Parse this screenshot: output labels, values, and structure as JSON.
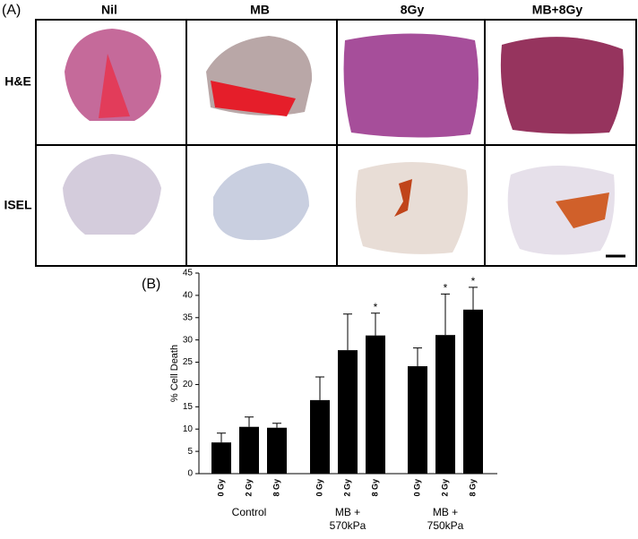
{
  "panel_a": {
    "label": "(A)",
    "columns": [
      "Nil",
      "MB",
      "8Gy",
      "MB+8Gy"
    ],
    "rows": [
      "H&E",
      "ISEL"
    ]
  },
  "chart_data": {
    "type": "bar",
    "panel_label": "(B)",
    "y_label": "% Cell Death",
    "categories": [
      "0 Gy",
      "2 Gy",
      "8 Gy",
      "0 Gy",
      "2 Gy",
      "8 Gy",
      "0 Gy",
      "2 Gy",
      "8 Gy"
    ],
    "groups": [
      [
        "Control"
      ],
      [
        "MB +",
        "570kPa"
      ],
      [
        "MB +",
        "750kPa"
      ]
    ],
    "values": [
      7,
      10.5,
      10.3,
      16.5,
      27.7,
      31,
      24.1,
      31.1,
      36.8
    ],
    "errors": [
      2.1,
      2.2,
      1.0,
      5.2,
      8.1,
      5,
      4.1,
      9.2,
      5
    ],
    "markers": [
      null,
      null,
      null,
      null,
      null,
      "*",
      null,
      "*",
      "*"
    ],
    "color": "#000000",
    "ylim": [
      0,
      45
    ],
    "yticks": [
      0,
      5,
      10,
      15,
      20,
      25,
      30,
      35,
      40,
      45
    ]
  }
}
